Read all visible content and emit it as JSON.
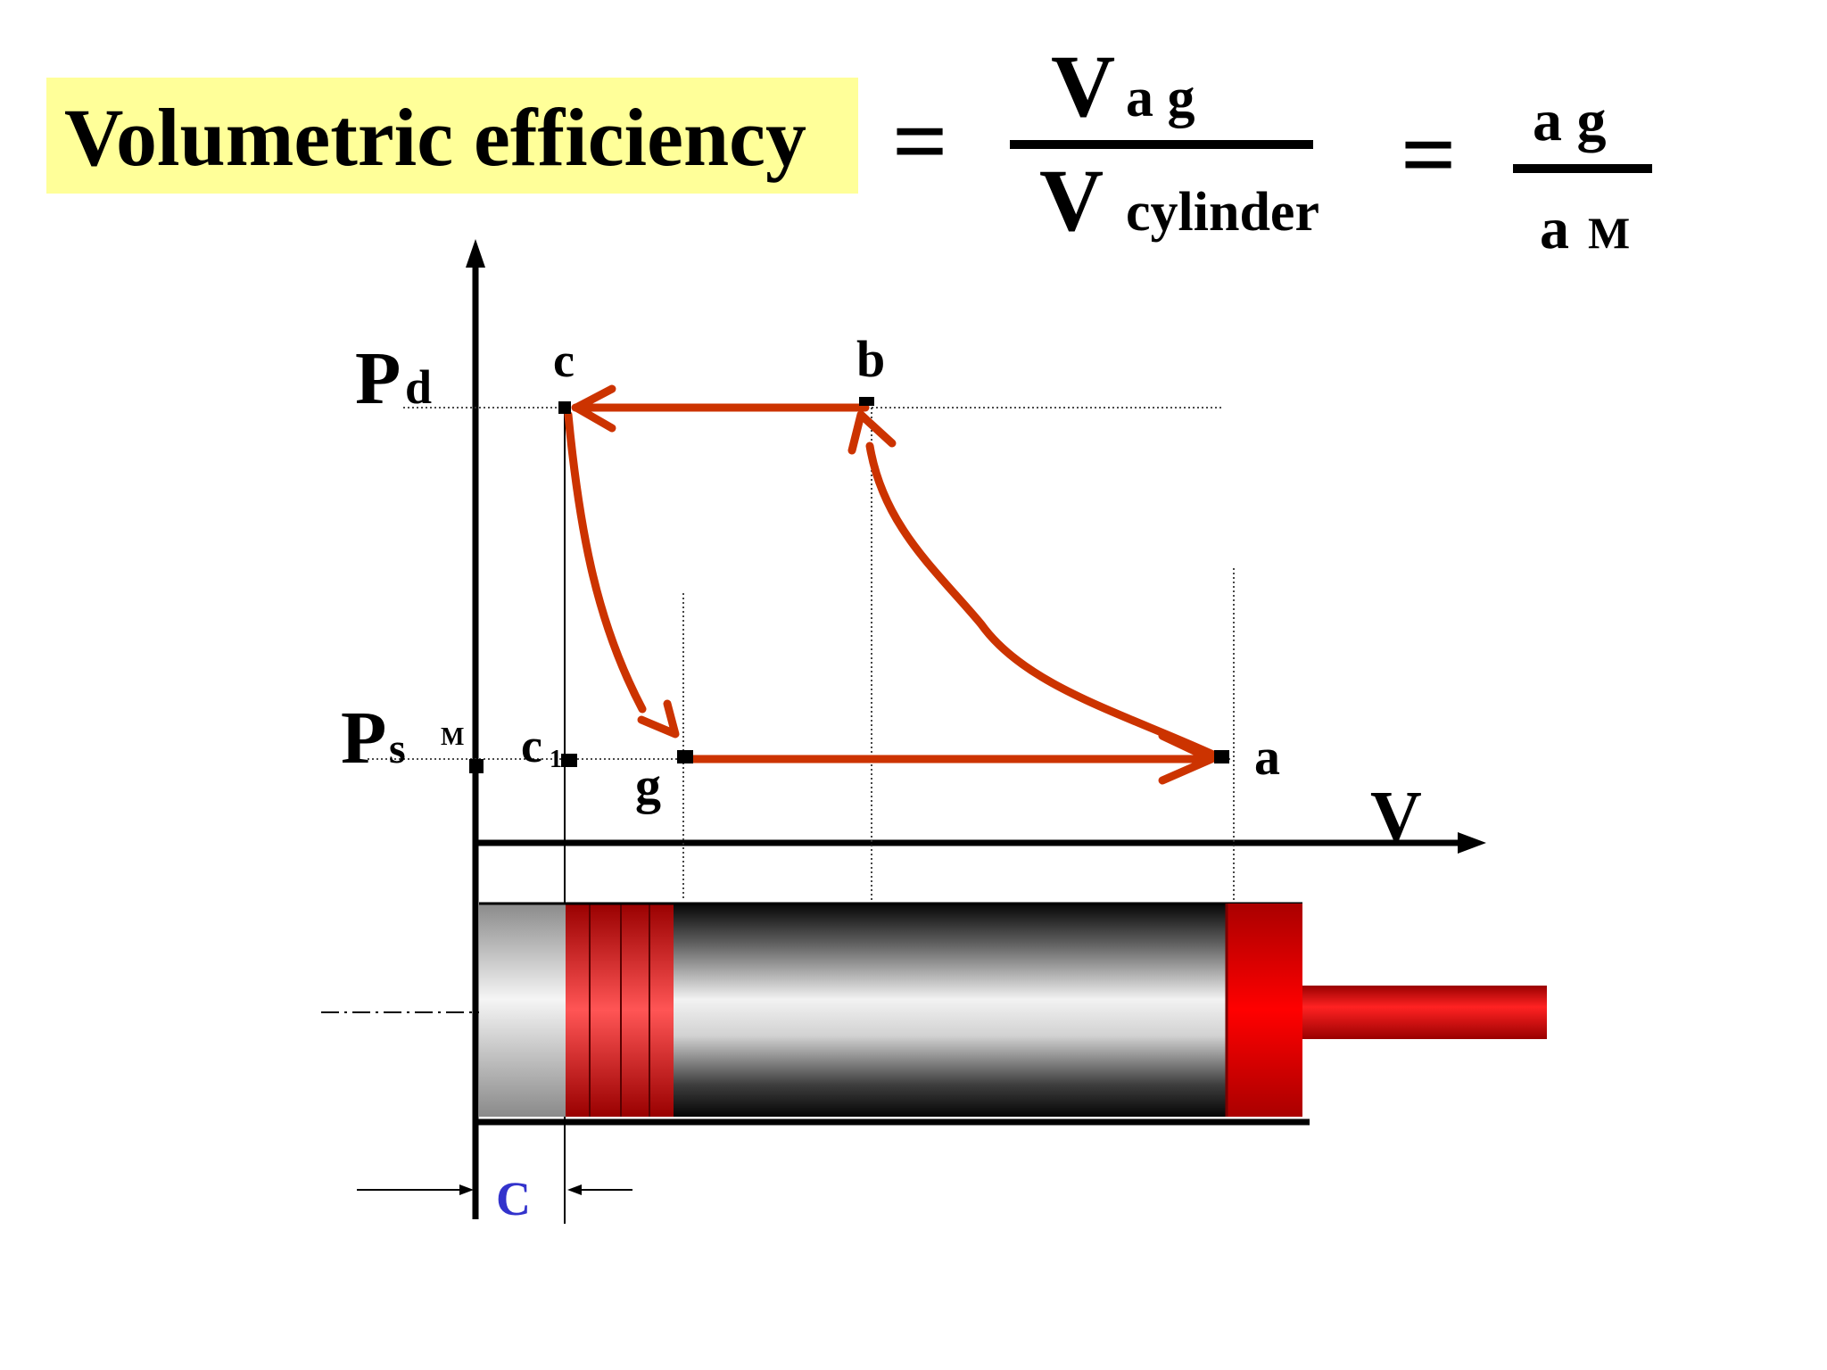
{
  "title": "Volumetric efficiency",
  "formula": {
    "equals_1": "=",
    "num_symbol": "V",
    "num_sub": "a g",
    "den_symbol": "V",
    "den_sub": "cylinder",
    "equals_2": "=",
    "ratio_num": "a g",
    "ratio_den_a": "a",
    "ratio_den_m": "M"
  },
  "diagram": {
    "pd_symbol": "P",
    "pd_sub": "d",
    "ps_symbol": "P",
    "ps_sub": "s",
    "point_m": "M",
    "point_c": "c",
    "point_b": "b",
    "point_c1": "c",
    "point_c1_sub": "1",
    "point_g": "g",
    "point_a": "a",
    "axis_v": "V",
    "clearance": "C"
  },
  "colors": {
    "cycle": "#cc3300",
    "highlight": "#ffff99",
    "clearance_label": "#3333cc",
    "piston": "#ff0000"
  }
}
